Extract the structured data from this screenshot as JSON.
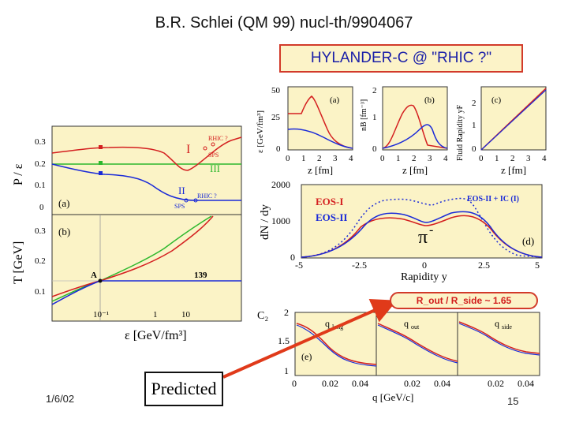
{
  "slide": {
    "title": "B.R. Schlei (QM 99)  nucl-th/9904067",
    "subtitle_box": "HYLANDER-C @ \"RHIC ?\"",
    "date": "1/6/02",
    "predicted_label": "Predicted",
    "ratio_label": "R_out / R_side ~ 1.65",
    "page_number": "15"
  },
  "left_plot": {
    "top_ylabel": "P / ε",
    "bottom_ylabel": "T [GeV]",
    "xlabel": "ε  [GeV/fm³]",
    "top_panel_tag": "(a)",
    "bottom_panel_tag": "(b)",
    "top_yticks": [
      "0.3",
      "0.2",
      "0.1",
      "0"
    ],
    "bottom_yticks": [
      "0.3",
      "0.2",
      "0.1"
    ],
    "xticks": [
      "10⁻¹",
      "1",
      "10"
    ],
    "curve_labels": {
      "eos1": "I",
      "eos3": "III",
      "eos2": "II"
    },
    "rhic_label_1": "RHIC ?",
    "sps_label_1": "SPS",
    "rhic_label_2": "RHIC ?",
    "sps_label_2": "SPS",
    "point_a": "A",
    "point_139": "139"
  },
  "top_right_plots": {
    "a_ylabel": "ε [GeV/fm³]",
    "b_ylabel": "nB [fm⁻³]",
    "c_ylabel": "Fluid Rapidity yF",
    "tag_a": "(a)",
    "tag_b": "(b)",
    "tag_c": "(c)",
    "xlabel": "z [fm]",
    "a_yticks": [
      "50",
      "25",
      "0"
    ],
    "b_yticks": [
      "2",
      "1",
      "0"
    ],
    "c_yticks": [
      "2",
      "1",
      "0"
    ],
    "xticks": [
      "0",
      "1",
      "2",
      "3",
      "4"
    ]
  },
  "rapidity_plot": {
    "ylabel": "dN / dy",
    "xlabel": "Rapidity y",
    "yticks": [
      "2000",
      "1000",
      "0"
    ],
    "xticks": [
      "-5",
      "-2.5",
      "0",
      "2.5",
      "5"
    ],
    "legend_eos1": "EOS-I",
    "legend_eos2": "EOS-II",
    "legend_eos2_ic": "EOS-II + IC (I)",
    "particle": "π",
    "particle_sup": "-",
    "tag": "(d)"
  },
  "c2_plot": {
    "ylabel": "C₂",
    "xlabel": "q  [GeV/c]",
    "yticks": [
      "2",
      "1.5",
      "1"
    ],
    "xticks": [
      "0",
      "0.02",
      "0.04",
      "0.02",
      "0.04",
      "0.02",
      "0.04"
    ],
    "q_long": "q",
    "q_long_sub": "long",
    "q_out": "q",
    "q_out_sub": "out",
    "q_side": "q",
    "q_side_sub": "side",
    "tag": "(e)"
  },
  "colors": {
    "red_curve": "#d42020",
    "blue_curve": "#1a2ad8",
    "green_curve": "#2db82d",
    "panel_bg": "#fbf3c6",
    "arrow": "#e03a1a"
  }
}
